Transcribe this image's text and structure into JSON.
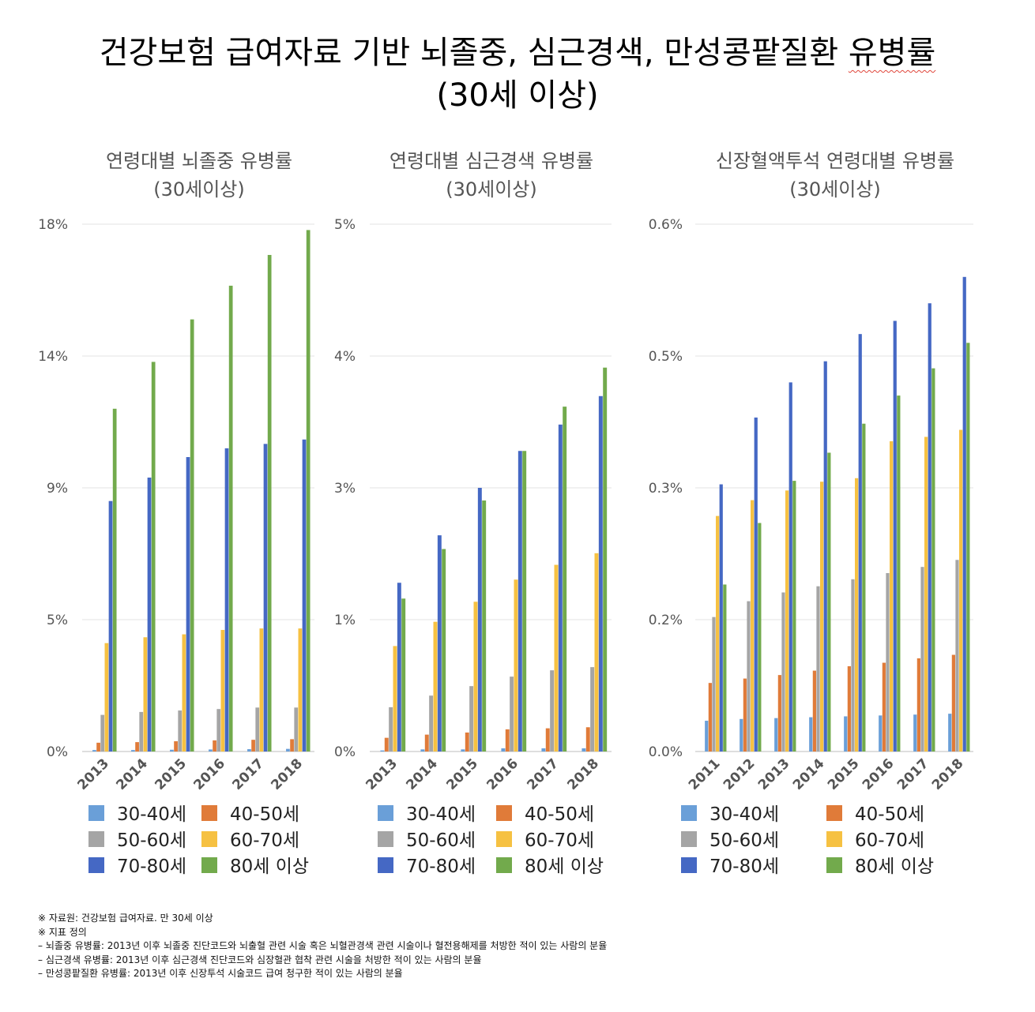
{
  "title_line1": "건강보험 급여자료 기반 뇌졸중, 심근경색, 만성콩팥질환 ",
  "title_line1_flagged": "유병률",
  "title_line2": "(30세 이상)",
  "series_colors": [
    "#6a9fd8",
    "#e07b39",
    "#a5a5a5",
    "#f6c142",
    "#4568c4",
    "#72aa4c"
  ],
  "chart_data": [
    {
      "type": "bar",
      "title": [
        "연령대별 뇌졸중 유병률",
        "(30세이상)"
      ],
      "categories": [
        "2013",
        "2014",
        "2015",
        "2016",
        "2017",
        "2018"
      ],
      "ylim": [
        0,
        18
      ],
      "yticks": [
        0,
        4.5,
        9,
        13.5,
        18
      ],
      "ytick_labels": [
        "0%",
        "5%",
        "9%",
        "14%",
        "18%"
      ],
      "legend": "bottom",
      "series": [
        {
          "name": "30-40세",
          "values": [
            0.05,
            0.05,
            0.06,
            0.07,
            0.08,
            0.09
          ]
        },
        {
          "name": "40-50세",
          "values": [
            0.3,
            0.32,
            0.35,
            0.38,
            0.4,
            0.42
          ]
        },
        {
          "name": "50-60세",
          "values": [
            1.25,
            1.35,
            1.4,
            1.45,
            1.5,
            1.5
          ]
        },
        {
          "name": "60-70세",
          "values": [
            3.7,
            3.9,
            4.0,
            4.15,
            4.2,
            4.2
          ]
        },
        {
          "name": "70-80세",
          "values": [
            8.55,
            9.35,
            10.05,
            10.35,
            10.5,
            10.65
          ]
        },
        {
          "name": "80세 이상",
          "values": [
            11.7,
            13.3,
            14.75,
            15.9,
            16.95,
            17.8
          ]
        }
      ]
    },
    {
      "type": "bar",
      "title": [
        "연령대별 심근경색 유병률",
        "(30세이상)"
      ],
      "categories": [
        "2013",
        "2014",
        "2015",
        "2016",
        "2017",
        "2018"
      ],
      "ylim": [
        0,
        5
      ],
      "yticks": [
        0,
        1.25,
        2.5,
        3.75,
        5
      ],
      "ytick_labels": [
        "0%",
        "1%",
        "3%",
        "4%",
        "5%"
      ],
      "legend": "bottom",
      "series": [
        {
          "name": "30-40세",
          "values": [
            0.01,
            0.02,
            0.02,
            0.03,
            0.03,
            0.03
          ]
        },
        {
          "name": "40-50세",
          "values": [
            0.13,
            0.16,
            0.18,
            0.21,
            0.22,
            0.23
          ]
        },
        {
          "name": "50-60세",
          "values": [
            0.42,
            0.53,
            0.62,
            0.71,
            0.77,
            0.8
          ]
        },
        {
          "name": "60-70세",
          "values": [
            1.0,
            1.23,
            1.42,
            1.63,
            1.77,
            1.88
          ]
        },
        {
          "name": "70-80세",
          "values": [
            1.6,
            2.05,
            2.5,
            2.85,
            3.1,
            3.37
          ]
        },
        {
          "name": "80세 이상",
          "values": [
            1.45,
            1.92,
            2.38,
            2.85,
            3.27,
            3.64
          ]
        }
      ]
    },
    {
      "type": "bar",
      "title": [
        "신장혈액투석 연령대별 유병률",
        "(30세이상)"
      ],
      "categories": [
        "2011",
        "2012",
        "2013",
        "2014",
        "2015",
        "2016",
        "2017",
        "2018"
      ],
      "ylim": [
        0,
        0.6
      ],
      "yticks": [
        0,
        0.15,
        0.3,
        0.45,
        0.6
      ],
      "ytick_labels": [
        "0.0%",
        "0.2%",
        "0.3%",
        "0.5%",
        "0.6%"
      ],
      "legend": "bottom",
      "series": [
        {
          "name": "30-40세",
          "values": [
            0.035,
            0.037,
            0.038,
            0.039,
            0.04,
            0.041,
            0.042,
            0.043
          ]
        },
        {
          "name": "40-50세",
          "values": [
            0.078,
            0.083,
            0.087,
            0.092,
            0.097,
            0.101,
            0.106,
            0.11
          ]
        },
        {
          "name": "50-60세",
          "values": [
            0.153,
            0.171,
            0.181,
            0.188,
            0.196,
            0.203,
            0.21,
            0.218
          ]
        },
        {
          "name": "60-70세",
          "values": [
            0.268,
            0.286,
            0.297,
            0.307,
            0.311,
            0.353,
            0.358,
            0.366
          ]
        },
        {
          "name": "70-80세",
          "values": [
            0.304,
            0.38,
            0.42,
            0.444,
            0.475,
            0.49,
            0.51,
            0.54
          ]
        },
        {
          "name": "80세 이상",
          "values": [
            0.19,
            0.26,
            0.308,
            0.34,
            0.373,
            0.405,
            0.436,
            0.465
          ]
        }
      ]
    }
  ],
  "notes": [
    "※ 자료원: 건강보험 급여자료. 만 30세 이상",
    "※ 지표 정의",
    "– 뇌졸중 유병률: 2013년 이후 뇌졸중 진단코드와 뇌출혈 관련 시술 혹은 뇌혈관경색 관련 시술이나 혈전용해제를 처방한 적이 있는 사람의 분율",
    "– 심근경색 유병률: 2013년 이후 심근경색 진단코드와 심장혈관 협착 관련 시술을 처방한 적이 있는 사람의 분율",
    "– 만성콩팥질환 유병률: 2013년 이후 신장투석 시술코드 급여 청구한 적이 있는 사람의 분율"
  ]
}
